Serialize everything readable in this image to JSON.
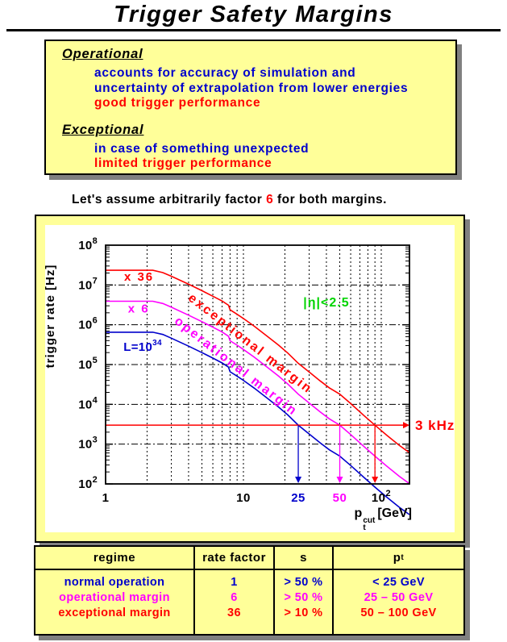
{
  "title": {
    "text": "Trigger Safety Margins"
  },
  "colors": {
    "yellow": "#FFFF99",
    "shadow": "#808080",
    "blue": "#0000CC",
    "red": "#FF0000",
    "magenta": "#FF00FF",
    "green": "#00D400",
    "black": "#000000"
  },
  "info_box": {
    "sections": [
      {
        "heading": "Operational",
        "lines": [
          {
            "text": "accounts for accuracy of simulation and",
            "color": "#0000CC"
          },
          {
            "text": "uncertainty of extrapolation from lower energies",
            "color": "#0000CC"
          },
          {
            "text": "good trigger performance",
            "color": "#FF0000"
          }
        ]
      },
      {
        "heading": "Exceptional",
        "lines": [
          {
            "text": "in case of something unexpected",
            "color": "#0000CC"
          },
          {
            "text": "limited trigger performance",
            "color": "#FF0000"
          }
        ]
      }
    ]
  },
  "assumption": {
    "prefix": "Let's assume arbitrarily factor ",
    "factor": "6",
    "suffix": " for both margins.",
    "factor_color": "#FF0000"
  },
  "chart_data": {
    "type": "line",
    "xscale": "log",
    "yscale": "log",
    "xlim": [
      1,
      160
    ],
    "ylim": [
      100,
      100000000
    ],
    "grid": {
      "x": "log-minor dashed",
      "y": "decades dash-dot"
    },
    "ylabel": "trigger rate [Hz]",
    "xlabel_parts": {
      "base": "p",
      "sup": "cut",
      "sub": "t",
      "unit": "[GeV]"
    },
    "y_ticks": [
      {
        "base": "10",
        "exp": "8",
        "value": 100000000
      },
      {
        "base": "10",
        "exp": "7",
        "value": 10000000
      },
      {
        "base": "10",
        "exp": "6",
        "value": 1000000
      },
      {
        "base": "10",
        "exp": "5",
        "value": 100000
      },
      {
        "base": "10",
        "exp": "4",
        "value": 10000
      },
      {
        "base": "10",
        "exp": "3",
        "value": 1000
      },
      {
        "base": "10",
        "exp": "2",
        "value": 100
      }
    ],
    "x_ticks": [
      {
        "value": 1,
        "label": "1",
        "color": "#000000"
      },
      {
        "value": 10,
        "label": "10",
        "color": "#000000"
      },
      {
        "value": 100,
        "label": "10",
        "sup": "2",
        "color": "#000000"
      },
      {
        "value": 25,
        "label": "25",
        "color": "#0000CC"
      },
      {
        "value": 50,
        "label": "50",
        "color": "#FF00FF"
      }
    ],
    "base_points": [
      [
        1,
        650000
      ],
      [
        2.2,
        650000
      ],
      [
        2.6,
        570000
      ],
      [
        3,
        460000
      ],
      [
        4,
        290000
      ],
      [
        5,
        200000
      ],
      [
        6,
        145000
      ],
      [
        7,
        110000
      ],
      [
        7.8,
        86000
      ],
      [
        8,
        66000
      ],
      [
        9,
        51000
      ],
      [
        10,
        40000
      ],
      [
        12,
        25500
      ],
      [
        15,
        14000
      ],
      [
        18,
        8500
      ],
      [
        21,
        5400
      ],
      [
        25,
        3000
      ],
      [
        30,
        1800
      ],
      [
        36,
        1080
      ],
      [
        42,
        720
      ],
      [
        50,
        500
      ],
      [
        60,
        290
      ],
      [
        75,
        145
      ],
      [
        90,
        83
      ],
      [
        110,
        46
      ],
      [
        135,
        26
      ],
      [
        160,
        17
      ]
    ],
    "series": [
      {
        "name": "L=10^34 (normal operation)",
        "factor": 1,
        "color": "#0000CC"
      },
      {
        "name": "x 6 (operational margin)",
        "factor": 6,
        "color": "#FF00FF"
      },
      {
        "name": "x 36 (exceptional margin)",
        "factor": 36,
        "color": "#FF0000"
      }
    ],
    "threshold": {
      "value": 3000,
      "label": "3 kHz",
      "color": "#FF0000"
    },
    "drop_arrows": [
      {
        "x": 25,
        "color": "#0000CC"
      },
      {
        "x": 50,
        "color": "#FF00FF"
      },
      {
        "x": 90,
        "color": "#FF0000"
      }
    ],
    "annotations": [
      {
        "text": "x 36",
        "x": 1.75,
        "y": 12800000,
        "color": "#FF0000",
        "size": 15,
        "spacing": 2,
        "anchor": "middle"
      },
      {
        "text": "x 6",
        "x": 1.74,
        "y": 2050000,
        "color": "#FF00FF",
        "size": 15,
        "spacing": 2,
        "anchor": "middle"
      },
      {
        "text": "L=10",
        "sup": "34",
        "x": 1.35,
        "y": 220000,
        "color": "#0000CC",
        "size": 15,
        "anchor": "start"
      },
      {
        "text": "|η|<2.5",
        "x": 40,
        "y": 2900000,
        "color": "#00D400",
        "size": 16,
        "spacing": 1,
        "anchor": "middle"
      },
      {
        "text": "exceptional margin",
        "x": 10.8,
        "y": 280000,
        "color": "#FF0000",
        "size": 16,
        "spacing": 2.5,
        "rotate": 38,
        "anchor": "middle"
      },
      {
        "text": "operational margin",
        "x": 8.5,
        "y": 75500,
        "color": "#FF00FF",
        "size": 16,
        "spacing": 2.5,
        "rotate": 38,
        "anchor": "middle"
      }
    ]
  },
  "table": {
    "headers": [
      {
        "text": "regime"
      },
      {
        "text": "rate factor"
      },
      {
        "text": "s"
      },
      {
        "text": "p",
        "sub": "t"
      }
    ],
    "rows": [
      {
        "color": "#0000CC",
        "cells": [
          "normal operation",
          "1",
          "> 50 %",
          "< 25 GeV"
        ]
      },
      {
        "color": "#FF00FF",
        "cells": [
          "operational margin",
          "6",
          "> 50 %",
          "25 – 50 GeV"
        ]
      },
      {
        "color": "#FF0000",
        "cells": [
          "exceptional margin",
          "36",
          "> 10 %",
          "50 – 100 GeV"
        ]
      }
    ]
  }
}
